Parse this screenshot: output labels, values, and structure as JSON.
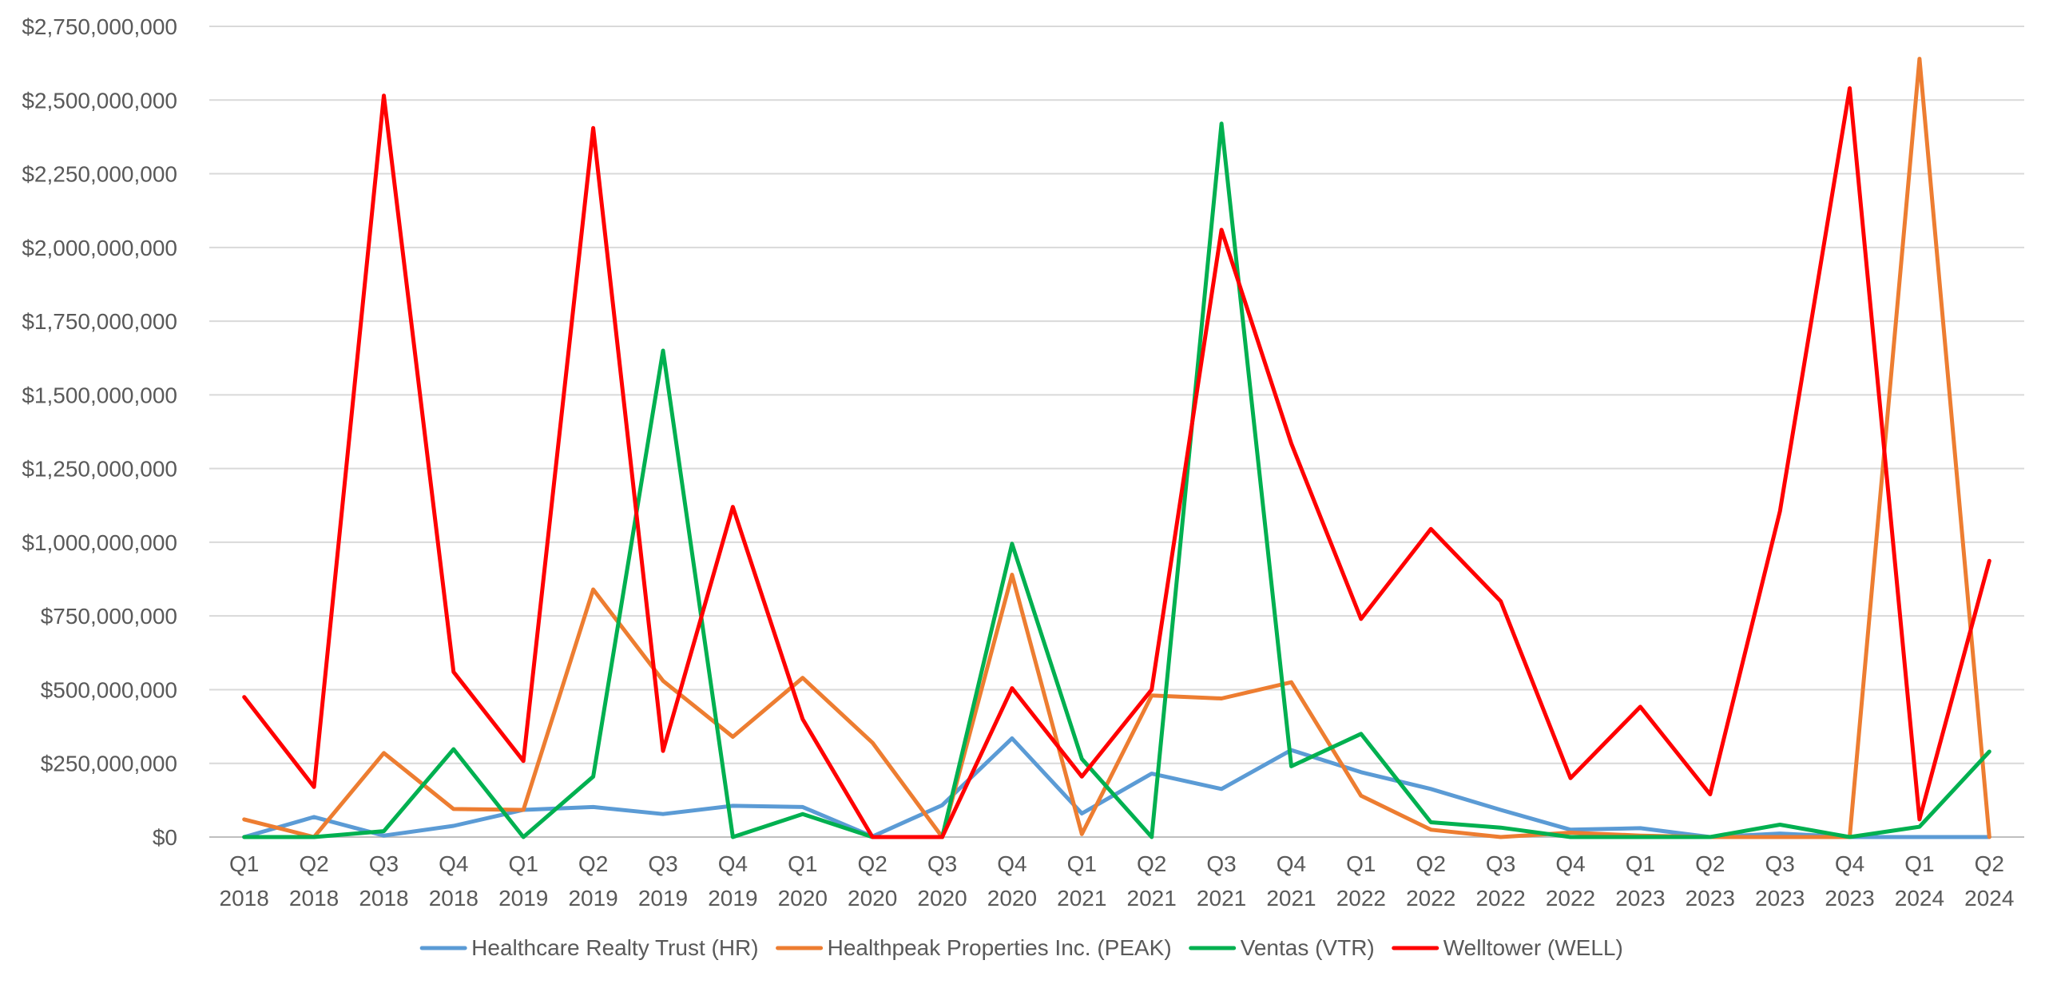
{
  "chart_data": {
    "type": "line",
    "title": "",
    "xlabel": "",
    "ylabel": "",
    "ylim": [
      0,
      2750000000
    ],
    "y_tick_step": 250000000,
    "y_tick_labels": [
      "$0",
      "$250,000,000",
      "$500,000,000",
      "$750,000,000",
      "$1,000,000,000",
      "$1,250,000,000",
      "$1,500,000,000",
      "$1,750,000,000",
      "$2,000,000,000",
      "$2,250,000,000",
      "$2,500,000,000",
      "$2,750,000,000"
    ],
    "grid": true,
    "legend_position": "bottom",
    "categories": [
      "Q1 2018",
      "Q2 2018",
      "Q3 2018",
      "Q4 2018",
      "Q1 2019",
      "Q2 2019",
      "Q3 2019",
      "Q4 2019",
      "Q1 2020",
      "Q2 2020",
      "Q3 2020",
      "Q4 2020",
      "Q1 2021",
      "Q2 2021",
      "Q3 2021",
      "Q4 2021",
      "Q1 2022",
      "Q2 2022",
      "Q3 2022",
      "Q4 2022",
      "Q1 2023",
      "Q2 2023",
      "Q3 2023",
      "Q4 2023",
      "Q1 2024",
      "Q2 2024"
    ],
    "series": [
      {
        "name": "Healthcare Realty Trust (HR)",
        "color": "#5B9BD5",
        "values": [
          0,
          68000000,
          5000000,
          38000000,
          92000000,
          102000000,
          78000000,
          106000000,
          102000000,
          2000000,
          108000000,
          335000000,
          80000000,
          215000000,
          163000000,
          295000000,
          220000000,
          163000000,
          92000000,
          25000000,
          30000000,
          0,
          12000000,
          0,
          0,
          0
        ]
      },
      {
        "name": "Healthpeak Properties Inc. (PEAK)",
        "color": "#ED7D31",
        "values": [
          60000000,
          0,
          285000000,
          95000000,
          92000000,
          840000000,
          530000000,
          340000000,
          540000000,
          320000000,
          0,
          890000000,
          10000000,
          480000000,
          470000000,
          525000000,
          140000000,
          25000000,
          0,
          15000000,
          5000000,
          0,
          0,
          0,
          2640000000,
          0
        ]
      },
      {
        "name": "Ventas (VTR)",
        "color": "#00B050",
        "values": [
          0,
          0,
          20000000,
          298000000,
          0,
          205000000,
          1650000000,
          0,
          78000000,
          0,
          0,
          995000000,
          265000000,
          0,
          2420000000,
          240000000,
          350000000,
          50000000,
          32000000,
          0,
          0,
          0,
          42000000,
          0,
          35000000,
          290000000
        ]
      },
      {
        "name": "Welltower (WELL)",
        "color": "#FF0000",
        "values": [
          475000000,
          170000000,
          2515000000,
          560000000,
          258000000,
          2405000000,
          292000000,
          1120000000,
          400000000,
          0,
          0,
          505000000,
          205000000,
          500000000,
          2060000000,
          1335000000,
          740000000,
          1045000000,
          800000000,
          200000000,
          442000000,
          145000000,
          1105000000,
          2540000000,
          60000000,
          937000000
        ]
      }
    ]
  }
}
